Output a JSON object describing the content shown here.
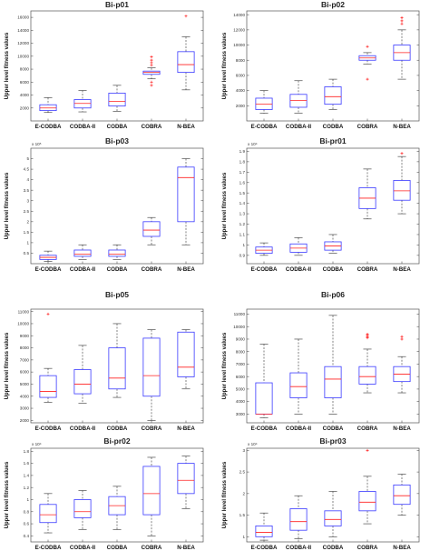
{
  "figure": {
    "ylabel": "Upper level fitness values"
  },
  "chart_data": [
    {
      "type": "box",
      "title": "Bi-p01",
      "categories": [
        "E-CODBA",
        "CODBA-II",
        "CODBA",
        "COBRA",
        "N-BEA"
      ],
      "ylim": [
        0,
        17000
      ],
      "yticks": [
        2000,
        4000,
        6000,
        8000,
        10000,
        12000,
        14000,
        16000
      ],
      "tick_labels": [
        "2000",
        "4000",
        "6000",
        "8000",
        "10000",
        "12000",
        "14000",
        "16000"
      ],
      "multiplier": "",
      "boxes": [
        {
          "min": 1300,
          "q1": 1600,
          "median": 2000,
          "q3": 2500,
          "max": 3600,
          "outliers": []
        },
        {
          "min": 1400,
          "q1": 2000,
          "median": 2700,
          "q3": 3300,
          "max": 4700,
          "outliers": []
        },
        {
          "min": 1500,
          "q1": 2300,
          "median": 3000,
          "q3": 4300,
          "max": 5500,
          "outliers": []
        },
        {
          "min": 6500,
          "q1": 7200,
          "median": 7500,
          "q3": 7700,
          "max": 8200,
          "outliers": [
            5500,
            6000,
            8600,
            9000,
            9400,
            9900
          ]
        },
        {
          "min": 4800,
          "q1": 7500,
          "median": 8700,
          "q3": 10700,
          "max": 13000,
          "outliers": [
            16200
          ]
        }
      ]
    },
    {
      "type": "box",
      "title": "Bi-p02",
      "categories": [
        "E-CODBA",
        "CODBA-II",
        "CODBA",
        "COBRA",
        "N-BEA"
      ],
      "ylim": [
        0,
        14500
      ],
      "yticks": [
        2000,
        4000,
        6000,
        8000,
        10000,
        12000,
        14000
      ],
      "tick_labels": [
        "2000",
        "4000",
        "6000",
        "8000",
        "10000",
        "12000",
        "14000"
      ],
      "multiplier": "",
      "boxes": [
        {
          "min": 1000,
          "q1": 1500,
          "median": 2200,
          "q3": 3000,
          "max": 4000,
          "outliers": []
        },
        {
          "min": 1000,
          "q1": 1800,
          "median": 2700,
          "q3": 3500,
          "max": 5300,
          "outliers": []
        },
        {
          "min": 1500,
          "q1": 2200,
          "median": 3200,
          "q3": 4500,
          "max": 5500,
          "outliers": []
        },
        {
          "min": 7500,
          "q1": 8000,
          "median": 8300,
          "q3": 8600,
          "max": 9000,
          "outliers": [
            5500,
            9800
          ]
        },
        {
          "min": 5500,
          "q1": 8000,
          "median": 9000,
          "q3": 10000,
          "max": 12000,
          "outliers": [
            12800,
            13200,
            13600
          ]
        }
      ]
    },
    {
      "type": "box",
      "title": "Bi-p03",
      "categories": [
        "E-CODBA",
        "CODBA-II",
        "CODBA",
        "COBRA",
        "N-BEA"
      ],
      "ylim": [
        0,
        5.5
      ],
      "yticks": [
        0.5,
        1,
        1.5,
        2,
        2.5,
        3,
        3.5,
        4,
        4.5,
        5
      ],
      "tick_labels": [
        "0.5",
        "1",
        "1.5",
        "2",
        "2.5",
        "3",
        "3.5",
        "4",
        "4.5",
        "5"
      ],
      "multiplier": "x 10⁵",
      "boxes": [
        {
          "min": 0.1,
          "q1": 0.2,
          "median": 0.3,
          "q3": 0.4,
          "max": 0.6,
          "outliers": []
        },
        {
          "min": 0.2,
          "q1": 0.35,
          "median": 0.45,
          "q3": 0.65,
          "max": 0.9,
          "outliers": []
        },
        {
          "min": 0.2,
          "q1": 0.35,
          "median": 0.45,
          "q3": 0.65,
          "max": 0.9,
          "outliers": []
        },
        {
          "min": 0.9,
          "q1": 1.3,
          "median": 1.6,
          "q3": 2.0,
          "max": 2.2,
          "outliers": []
        },
        {
          "min": 0.9,
          "q1": 2.0,
          "median": 4.1,
          "q3": 4.6,
          "max": 5.0,
          "outliers": []
        }
      ]
    },
    {
      "type": "box",
      "title": "Bi-pr01",
      "categories": [
        "E-CODBA",
        "CODBA-II",
        "CODBA",
        "COBRA",
        "N-BEA"
      ],
      "ylim": [
        0.82,
        1.93
      ],
      "yticks": [
        0.9,
        1,
        1.1,
        1.2,
        1.3,
        1.4,
        1.5,
        1.6,
        1.7,
        1.8,
        1.9
      ],
      "tick_labels": [
        "0.9",
        "1",
        "1.1",
        "1.2",
        "1.3",
        "1.4",
        "1.5",
        "1.6",
        "1.7",
        "1.8",
        "1.9"
      ],
      "multiplier": "x 10⁴",
      "boxes": [
        {
          "min": 0.9,
          "q1": 0.92,
          "median": 0.95,
          "q3": 0.98,
          "max": 1.02,
          "outliers": []
        },
        {
          "min": 0.9,
          "q1": 0.93,
          "median": 0.97,
          "q3": 1.01,
          "max": 1.07,
          "outliers": []
        },
        {
          "min": 0.92,
          "q1": 0.95,
          "median": 0.99,
          "q3": 1.03,
          "max": 1.1,
          "outliers": []
        },
        {
          "min": 1.25,
          "q1": 1.35,
          "median": 1.45,
          "q3": 1.55,
          "max": 1.73,
          "outliers": []
        },
        {
          "min": 1.3,
          "q1": 1.43,
          "median": 1.52,
          "q3": 1.62,
          "max": 1.85,
          "outliers": [
            1.88
          ]
        }
      ]
    },
    {
      "type": "box",
      "title": "Bi-p05",
      "categories": [
        "E-CODBA",
        "CODBA-II",
        "CODBA",
        "COBRA",
        "N-BEA"
      ],
      "ylim": [
        1800,
        11200
      ],
      "yticks": [
        2000,
        3000,
        4000,
        5000,
        6000,
        7000,
        8000,
        9000,
        10000,
        11000
      ],
      "tick_labels": [
        "2000",
        "3000",
        "4000",
        "5000",
        "6000",
        "7000",
        "8000",
        "9000",
        "10000",
        "11000"
      ],
      "multiplier": "",
      "boxes": [
        {
          "min": 3500,
          "q1": 3900,
          "median": 4400,
          "q3": 5700,
          "max": 6300,
          "outliers": [
            10800
          ]
        },
        {
          "min": 3400,
          "q1": 4200,
          "median": 5000,
          "q3": 6200,
          "max": 8200,
          "outliers": []
        },
        {
          "min": 3900,
          "q1": 4600,
          "median": 5500,
          "q3": 8000,
          "max": 10000,
          "outliers": []
        },
        {
          "min": 2000,
          "q1": 4000,
          "median": 5700,
          "q3": 8800,
          "max": 9500,
          "outliers": []
        },
        {
          "min": 4600,
          "q1": 5600,
          "median": 6400,
          "q3": 9300,
          "max": 9500,
          "outliers": []
        }
      ]
    },
    {
      "type": "box",
      "title": "Bi-p06",
      "categories": [
        "E-CODBA",
        "CODBA-II",
        "CODBA",
        "COBRA",
        "N-BEA"
      ],
      "ylim": [
        2300,
        11400
      ],
      "yticks": [
        3000,
        4000,
        5000,
        6000,
        7000,
        8000,
        9000,
        10000,
        11000
      ],
      "tick_labels": [
        "3000",
        "4000",
        "5000",
        "6000",
        "7000",
        "8000",
        "9000",
        "10000",
        "11000"
      ],
      "multiplier": "",
      "boxes": [
        {
          "min": 2700,
          "q1": 3000,
          "median": 3000,
          "q3": 5500,
          "max": 8600,
          "outliers": []
        },
        {
          "min": 3000,
          "q1": 4300,
          "median": 5200,
          "q3": 6300,
          "max": 9000,
          "outliers": []
        },
        {
          "min": 3000,
          "q1": 4300,
          "median": 5800,
          "q3": 6800,
          "max": 10900,
          "outliers": []
        },
        {
          "min": 4700,
          "q1": 5400,
          "median": 6000,
          "q3": 6800,
          "max": 8200,
          "outliers": [
            9100,
            9200,
            9300,
            9400
          ]
        },
        {
          "min": 4700,
          "q1": 5600,
          "median": 6200,
          "q3": 6800,
          "max": 7600,
          "outliers": [
            9000,
            9200
          ]
        }
      ]
    },
    {
      "type": "box",
      "title": "Bi-pr02",
      "categories": [
        "E-CODBA",
        "CODBA-II",
        "CODBA",
        "COBRA",
        "N-BEA"
      ],
      "ylim": [
        0.3,
        1.85
      ],
      "yticks": [
        0.4,
        0.6,
        0.8,
        1,
        1.2,
        1.4,
        1.6,
        1.8
      ],
      "tick_labels": [
        "0.4",
        "0.6",
        "0.8",
        "1",
        "1.2",
        "1.4",
        "1.6",
        "1.8"
      ],
      "multiplier": "x 10⁴",
      "boxes": [
        {
          "min": 0.45,
          "q1": 0.62,
          "median": 0.75,
          "q3": 0.92,
          "max": 1.1,
          "outliers": []
        },
        {
          "min": 0.5,
          "q1": 0.7,
          "median": 0.8,
          "q3": 1.0,
          "max": 1.15,
          "outliers": []
        },
        {
          "min": 0.5,
          "q1": 0.75,
          "median": 0.9,
          "q3": 1.05,
          "max": 1.22,
          "outliers": []
        },
        {
          "min": 0.4,
          "q1": 0.75,
          "median": 1.1,
          "q3": 1.55,
          "max": 1.7,
          "outliers": []
        },
        {
          "min": 0.85,
          "q1": 1.1,
          "median": 1.32,
          "q3": 1.6,
          "max": 1.72,
          "outliers": []
        }
      ]
    },
    {
      "type": "box",
      "title": "Bi-pr03",
      "categories": [
        "E-CODBA",
        "CODBA-II",
        "CODBA",
        "COBRA",
        "N-BEA"
      ],
      "ylim": [
        0.88,
        3.05
      ],
      "yticks": [
        1,
        1.5,
        2,
        2.5,
        3
      ],
      "tick_labels": [
        "1",
        "1.5",
        "2",
        "2.5",
        "3"
      ],
      "multiplier": "x 10⁴",
      "boxes": [
        {
          "min": 0.92,
          "q1": 1.0,
          "median": 1.1,
          "q3": 1.25,
          "max": 1.55,
          "outliers": []
        },
        {
          "min": 0.95,
          "q1": 1.15,
          "median": 1.35,
          "q3": 1.65,
          "max": 1.95,
          "outliers": []
        },
        {
          "min": 1.0,
          "q1": 1.25,
          "median": 1.4,
          "q3": 1.6,
          "max": 2.05,
          "outliers": []
        },
        {
          "min": 1.3,
          "q1": 1.6,
          "median": 1.8,
          "q3": 2.05,
          "max": 2.4,
          "outliers": [
            3.0
          ]
        },
        {
          "min": 1.5,
          "q1": 1.75,
          "median": 1.95,
          "q3": 2.2,
          "max": 2.45,
          "outliers": []
        }
      ]
    }
  ]
}
